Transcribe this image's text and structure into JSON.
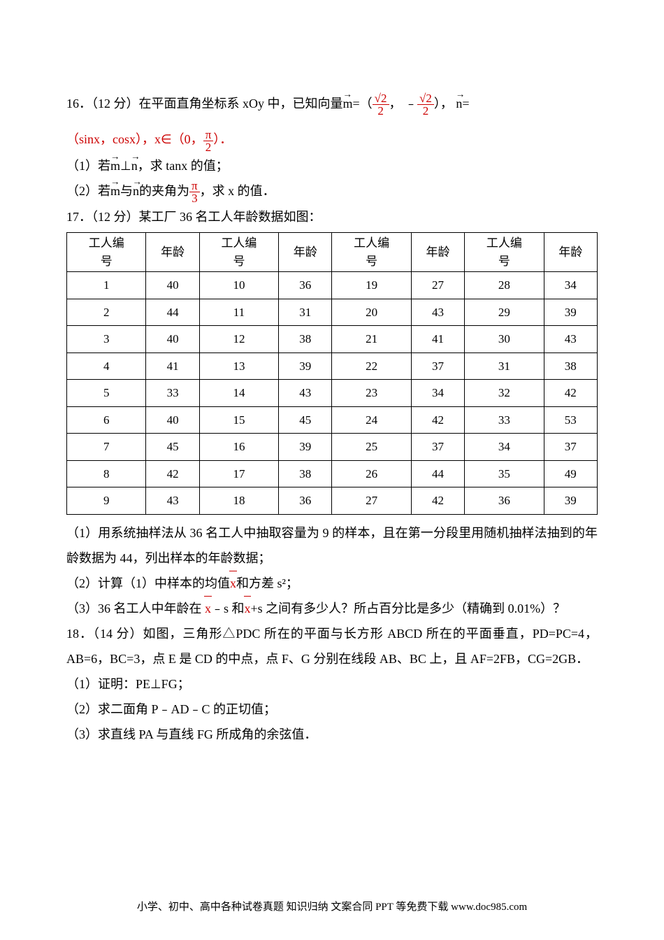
{
  "q16": {
    "num": "16．",
    "points": "（12 分）",
    "pre": "在平面直角坐标系 xOy 中，已知向量",
    "m_label": "m",
    "eq": "=（",
    "frac1_num": "√2",
    "frac1_den": "2",
    "comma": "，",
    "neg": "﹣",
    "frac2_num": "√2",
    "frac2_den": "2",
    "close": "）",
    "comma2": "，",
    "n_label": "n",
    "eq2": "=",
    "line2": "（sinx，cosx），x∈（0，",
    "pi": "π",
    "two": "2",
    "line2_end": "）．",
    "part1_pre": "（1）若",
    "part1_perp": "⊥",
    "part1_post": "，求 tanx 的值；",
    "part2_pre": "（2）若",
    "part2_mid": "与",
    "part2_post": "的夹角为",
    "part2_frac_num": "π",
    "part2_frac_den": "3",
    "part2_end": "，求 x 的值．"
  },
  "q17": {
    "num": "17．",
    "points": "（12 分）",
    "stem": "某工厂 36 名工人年龄数据如图：",
    "headers": [
      "工人编号",
      "年龄",
      "工人编号",
      "年龄",
      "工人编号",
      "年龄",
      "工人编号",
      "年龄"
    ],
    "rows": [
      [
        "1",
        "40",
        "10",
        "36",
        "19",
        "27",
        "28",
        "34"
      ],
      [
        "2",
        "44",
        "11",
        "31",
        "20",
        "43",
        "29",
        "39"
      ],
      [
        "3",
        "40",
        "12",
        "38",
        "21",
        "41",
        "30",
        "43"
      ],
      [
        "4",
        "41",
        "13",
        "39",
        "22",
        "37",
        "31",
        "38"
      ],
      [
        "5",
        "33",
        "14",
        "43",
        "23",
        "34",
        "32",
        "42"
      ],
      [
        "6",
        "40",
        "15",
        "45",
        "24",
        "42",
        "33",
        "53"
      ],
      [
        "7",
        "45",
        "16",
        "39",
        "25",
        "37",
        "34",
        "37"
      ],
      [
        "8",
        "42",
        "17",
        "38",
        "26",
        "44",
        "35",
        "49"
      ],
      [
        "9",
        "43",
        "18",
        "36",
        "27",
        "42",
        "36",
        "39"
      ]
    ],
    "p1": "（1）用系统抽样法从 36 名工人中抽取容量为 9 的样本，且在第一分段里用随机抽样法抽到的年龄数据为 44，列出样本的年龄数据；",
    "p2_pre": "（2）计算（1）中样本的均值",
    "p2_x": "x",
    "p2_mid": "和方差 s²；",
    "p3_pre": "（3）36 名工人中年龄在 ",
    "p3_mid1": "﹣s 和",
    "p3_mid2": "+s 之间有多少人？所占百分比是多少（精确到 0.01%）？"
  },
  "q18": {
    "num": "18．",
    "points": "（14 分）",
    "stem1": "如图，三角形△PDC 所在的平面与长方形 ABCD 所在的平面垂直，PD=PC=4，AB=6，BC=3，点 E 是 CD 的中点，点 F、G 分别在线段 AB、BC 上，且 AF=2FB，CG=2GB．",
    "p1": "（1）证明：PE⊥FG；",
    "p2": "（2）求二面角 P﹣AD﹣C 的正切值；",
    "p3": "（3）求直线 PA 与直线 FG 所成角的余弦值．"
  },
  "footer": "小学、初中、高中各种试卷真题 知识归纳 文案合同 PPT 等免费下载 www.doc985.com"
}
